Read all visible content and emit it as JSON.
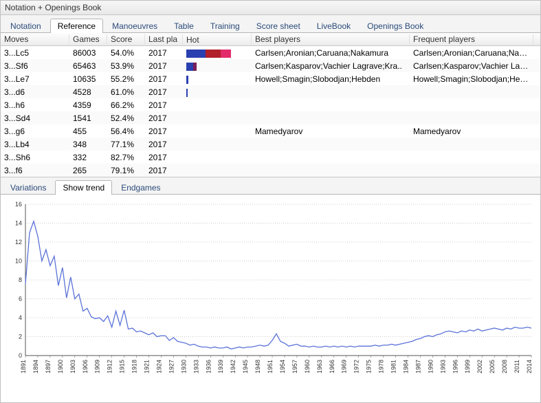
{
  "window": {
    "title": "Notation + Openings Book"
  },
  "tabs": {
    "items": [
      {
        "label": "Notation"
      },
      {
        "label": "Reference"
      },
      {
        "label": "Manoeuvres"
      },
      {
        "label": "Table"
      },
      {
        "label": "Training"
      },
      {
        "label": "Score sheet"
      },
      {
        "label": "LiveBook"
      },
      {
        "label": "Openings Book"
      }
    ],
    "active_index": 1
  },
  "columns": {
    "moves": "Moves",
    "games": "Games",
    "score": "Score",
    "last": "Last pla",
    "hot": "Hot",
    "best": "Best players",
    "freq": "Frequent players"
  },
  "rows": [
    {
      "move": "3...Lc5",
      "games": "86003",
      "score": "54.0%",
      "last": "2017",
      "hot": [
        [
          "#2a3fb0",
          28
        ],
        [
          "#b01f2a",
          22
        ],
        [
          "#e32a6a",
          15
        ]
      ],
      "best": "Carlsen;Aronian;Caruana;Nakamura",
      "freq": "Carlsen;Aronian;Caruana;Nakam.."
    },
    {
      "move": "3...Sf6",
      "games": "65463",
      "score": "53.9%",
      "last": "2017",
      "hot": [
        [
          "#2a3fb0",
          10
        ],
        [
          "#7a1f59",
          5
        ]
      ],
      "best": "Carlsen;Kasparov;Vachier Lagrave;Kra..",
      "freq": "Carlsen;Kasparov;Vachier Lagrav.."
    },
    {
      "move": "3...Le7",
      "games": "10635",
      "score": "55.2%",
      "last": "2017",
      "hot": [
        [
          "#2a3fb0",
          3
        ]
      ],
      "best": "Howell;Smagin;Slobodjan;Hebden",
      "freq": "Howell;Smagin;Slobodjan;Hebd.."
    },
    {
      "move": "3...d6",
      "games": "4528",
      "score": "61.0%",
      "last": "2017",
      "hot": [
        [
          "#2a3fb0",
          2
        ]
      ],
      "best": "",
      "freq": ""
    },
    {
      "move": "3...h6",
      "games": "4359",
      "score": "66.2%",
      "last": "2017",
      "hot": [],
      "best": "",
      "freq": ""
    },
    {
      "move": "3...Sd4",
      "games": "1541",
      "score": "52.4%",
      "last": "2017",
      "hot": [],
      "best": "",
      "freq": ""
    },
    {
      "move": "3...g6",
      "games": "455",
      "score": "56.4%",
      "last": "2017",
      "hot": [],
      "best": "Mamedyarov",
      "freq": "Mamedyarov"
    },
    {
      "move": "3...Lb4",
      "games": "348",
      "score": "77.1%",
      "last": "2017",
      "hot": [],
      "best": "",
      "freq": ""
    },
    {
      "move": "3...Sh6",
      "games": "332",
      "score": "82.7%",
      "last": "2017",
      "hot": [],
      "best": "",
      "freq": ""
    },
    {
      "move": "3...f6",
      "games": "265",
      "score": "79.1%",
      "last": "2017",
      "hot": [],
      "best": "",
      "freq": ""
    }
  ],
  "subtabs": {
    "items": [
      {
        "label": "Variations"
      },
      {
        "label": "Show trend"
      },
      {
        "label": "Endgames"
      }
    ],
    "active_index": 1
  },
  "chart": {
    "type": "line",
    "line_color": "#5a72d8",
    "background": "#ffffff",
    "grid_color": "#777777",
    "ylim": [
      0,
      16
    ],
    "ytick_step": 2,
    "x_start": 1891,
    "x_end": 2014,
    "x_tick_step": 3,
    "values": [
      7.6,
      13.0,
      14.2,
      12.6,
      10.0,
      11.2,
      9.5,
      10.5,
      7.4,
      9.3,
      6.1,
      8.3,
      6.0,
      6.5,
      4.7,
      5.0,
      4.1,
      3.9,
      4.0,
      3.6,
      4.2,
      3.0,
      4.7,
      3.2,
      4.8,
      2.8,
      2.9,
      2.5,
      2.6,
      2.4,
      2.2,
      2.4,
      2.0,
      2.1,
      2.1,
      1.6,
      1.9,
      1.5,
      1.4,
      1.3,
      1.1,
      1.2,
      1.0,
      0.9,
      0.9,
      0.8,
      0.9,
      0.8,
      0.8,
      0.9,
      0.7,
      0.8,
      0.9,
      0.8,
      0.9,
      0.9,
      1.0,
      1.1,
      1.0,
      1.1,
      1.6,
      2.3,
      1.5,
      1.3,
      1.0,
      1.1,
      1.2,
      1.0,
      1.0,
      0.9,
      1.0,
      0.9,
      0.9,
      1.0,
      0.9,
      1.0,
      0.9,
      1.0,
      0.9,
      1.0,
      0.9,
      1.0,
      1.0,
      1.0,
      1.0,
      1.1,
      1.0,
      1.1,
      1.1,
      1.2,
      1.1,
      1.2,
      1.3,
      1.4,
      1.5,
      1.7,
      1.8,
      2.0,
      2.1,
      2.0,
      2.2,
      2.3,
      2.5,
      2.6,
      2.5,
      2.4,
      2.6,
      2.5,
      2.7,
      2.6,
      2.8,
      2.6,
      2.7,
      2.8,
      2.9,
      2.8,
      2.7,
      2.9,
      2.8,
      3.0,
      2.9,
      2.9,
      3.0,
      2.9
    ]
  }
}
